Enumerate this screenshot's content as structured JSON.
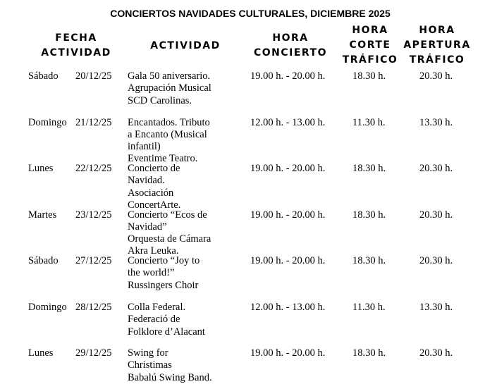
{
  "title": "CONCIERTOS NAVIDADES CULTURALES, DICIEMBRE 2025",
  "headers": [
    [
      "FECHA",
      "ACTIVIDAD"
    ],
    [
      "ACTIVIDAD"
    ],
    [
      "HORA",
      "CONCIERTO"
    ],
    [
      "HORA",
      "CORTE",
      "TRÁFICO"
    ],
    [
      "HORA",
      "APERTURA",
      "TRÁFICO"
    ]
  ],
  "rows": [
    {
      "day": "Sábado",
      "date": "20/12/25",
      "activity": [
        "Gala 50 aniversario.",
        "Agrupación Musical",
        "SCD Carolinas."
      ],
      "concert": "19.00 h. - 20.00 h.",
      "cut": "18.30 h.",
      "open": "20.30 h."
    },
    {
      "day": "Domingo",
      "date": "21/12/25",
      "activity": [
        "Encantados. Tributo",
        "a Encanto (Musical",
        "infantil)",
        "Eventime Teatro."
      ],
      "concert": "12.00 h. - 13.00 h.",
      "cut": "11.30 h.",
      "open": "13.30 h."
    },
    {
      "day": "Lunes",
      "date": "22/12/25",
      "activity": [
        "Concierto de",
        "Navidad.",
        "Asociación",
        "ConcertArte."
      ],
      "concert": "19.00 h. - 20.00 h.",
      "cut": "18.30 h.",
      "open": "20.30 h."
    },
    {
      "day": "Martes",
      "date": "23/12/25",
      "activity": [
        "Concierto “Ecos de",
        "Navidad”",
        "Orquesta de Cámara",
        "Akra Leuka."
      ],
      "concert": "19.00 h. - 20.00 h.",
      "cut": "18.30 h.",
      "open": "20.30 h."
    },
    {
      "day": "Sábado",
      "date": "27/12/25",
      "activity": [
        "Concierto “Joy to",
        "the world!”",
        "Russingers Choir"
      ],
      "concert": "19.00 h. - 20.00 h.",
      "cut": "18.30 h.",
      "open": "20.30 h."
    },
    {
      "day": "Domingo",
      "date": "28/12/25",
      "activity": [
        "Colla Federal.",
        "Federació de",
        "Folklore d’Alacant"
      ],
      "concert": "12.00 h. - 13.00 h.",
      "cut": "11.30 h.",
      "open": "13.30 h."
    },
    {
      "day": "Lunes",
      "date": "29/12/25",
      "activity": [
        "Swing for",
        "Christimas",
        "Babalú Swing Band."
      ],
      "concert": "19.00 h. - 20.00 h.",
      "cut": "18.30 h.",
      "open": "20.30 h."
    }
  ]
}
